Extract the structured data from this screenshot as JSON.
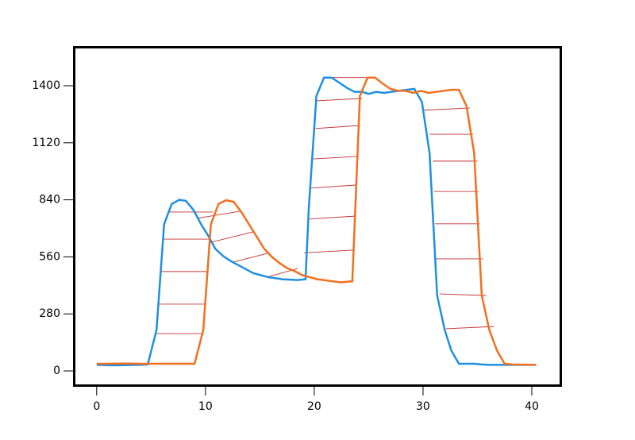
{
  "chart_data": {
    "type": "line",
    "xlim": [
      -2.1,
      42.7
    ],
    "ylim": [
      -74,
      1591
    ],
    "xticks": [
      0,
      10,
      20,
      30,
      40
    ],
    "yticks": [
      0,
      280,
      560,
      840,
      1120,
      1400
    ],
    "series": [
      {
        "color": "#1f8fe0",
        "x": [
          0,
          1,
          2,
          3,
          4,
          4.7,
          5.5,
          6.2,
          6.9,
          7.6,
          8.2,
          8.9,
          9.6,
          10.3,
          10.9,
          11.6,
          12.3,
          13,
          13.7,
          14.4,
          15.1,
          15.8,
          16.5,
          17.1,
          17.8,
          18.5,
          19.2,
          19.5,
          20.2,
          20.9,
          21.6,
          22.3,
          23,
          23.7,
          24.4,
          25,
          25.7,
          26.4,
          27.1,
          27.8,
          28.5,
          29.2,
          29.9,
          30.6,
          31.3,
          32,
          32.6,
          33.3,
          34,
          34.7,
          35.4,
          36.1,
          36.8,
          37.5,
          38.2,
          38.9,
          39.6,
          40.3
        ],
        "values": [
          30,
          28,
          28,
          29,
          30,
          32,
          200,
          720,
          820,
          840,
          835,
          790,
          720,
          660,
          600,
          565,
          540,
          520,
          500,
          480,
          470,
          460,
          455,
          450,
          448,
          446,
          450,
          800,
          1350,
          1440,
          1440,
          1415,
          1390,
          1370,
          1370,
          1360,
          1370,
          1365,
          1370,
          1375,
          1380,
          1385,
          1320,
          1070,
          370,
          200,
          100,
          35,
          35,
          35,
          32,
          30,
          30,
          30,
          30,
          30,
          30,
          30
        ]
      },
      {
        "color": "#f07020",
        "x": [
          0,
          1,
          2,
          3,
          4,
          9,
          9.8,
          10.5,
          11.2,
          11.9,
          12.6,
          13.3,
          14,
          14.7,
          15.4,
          16.1,
          16.8,
          17.5,
          18.2,
          18.9,
          19.6,
          20.3,
          21,
          21.7,
          22.4,
          23.5,
          24.2,
          24.9,
          25.6,
          26.3,
          27,
          27.7,
          28.4,
          29.1,
          29.8,
          30.5,
          31.2,
          31.9,
          32.6,
          33.3,
          34,
          34.7,
          35.4,
          36.1,
          36.8,
          37.5,
          38.2,
          40.4
        ],
        "values": [
          35,
          35,
          36,
          36,
          35,
          35,
          200,
          720,
          820,
          838,
          830,
          780,
          720,
          660,
          600,
          560,
          530,
          505,
          490,
          470,
          460,
          450,
          445,
          440,
          435,
          440,
          1350,
          1440,
          1440,
          1410,
          1385,
          1375,
          1375,
          1365,
          1375,
          1365,
          1370,
          1375,
          1380,
          1380,
          1300,
          1070,
          370,
          200,
          100,
          35,
          32,
          30
        ]
      }
    ],
    "links": {
      "color": "#c03030",
      "items": [
        {
          "x": [
            5.5,
            9.7
          ],
          "y": [
            183,
            183
          ]
        },
        {
          "x": [
            5.7,
            10
          ],
          "y": [
            328,
            328
          ]
        },
        {
          "x": [
            5.9,
            10.2
          ],
          "y": [
            488,
            488
          ]
        },
        {
          "x": [
            6.1,
            10.4
          ],
          "y": [
            647,
            647
          ]
        },
        {
          "x": [
            6.6,
            10.7
          ],
          "y": [
            780,
            780
          ]
        },
        {
          "x": [
            9.3,
            13.3
          ],
          "y": [
            750,
            785
          ]
        },
        {
          "x": [
            10.4,
            14.4
          ],
          "y": [
            630,
            683
          ]
        },
        {
          "x": [
            12.6,
            15.9
          ],
          "y": [
            535,
            580
          ]
        },
        {
          "x": [
            15.6,
            18.5
          ],
          "y": [
            460,
            503
          ]
        },
        {
          "x": [
            19.05,
            23.6
          ],
          "y": [
            580,
            593
          ]
        },
        {
          "x": [
            19.4,
            23.7
          ],
          "y": [
            745,
            760
          ]
        },
        {
          "x": [
            19.6,
            23.9
          ],
          "y": [
            897,
            913
          ]
        },
        {
          "x": [
            19.9,
            24
          ],
          "y": [
            1041,
            1053
          ]
        },
        {
          "x": [
            20.1,
            24.2
          ],
          "y": [
            1190,
            1205
          ]
        },
        {
          "x": [
            20.2,
            24.4
          ],
          "y": [
            1326,
            1338
          ]
        },
        {
          "x": [
            21,
            25.3
          ],
          "y": [
            1440,
            1440
          ]
        },
        {
          "x": [
            30.1,
            34.3
          ],
          "y": [
            1280,
            1291
          ]
        },
        {
          "x": [
            30.6,
            34.6
          ],
          "y": [
            1162,
            1162
          ]
        },
        {
          "x": [
            30.9,
            35
          ],
          "y": [
            1030,
            1030
          ]
        },
        {
          "x": [
            31,
            35.1
          ],
          "y": [
            881,
            881
          ]
        },
        {
          "x": [
            31.1,
            35.2
          ],
          "y": [
            722,
            722
          ]
        },
        {
          "x": [
            31.2,
            35.5
          ],
          "y": [
            550,
            550
          ]
        },
        {
          "x": [
            31.5,
            35.8
          ],
          "y": [
            378,
            370
          ]
        },
        {
          "x": [
            32.1,
            36.5
          ],
          "y": [
            207,
            218
          ]
        }
      ]
    }
  }
}
